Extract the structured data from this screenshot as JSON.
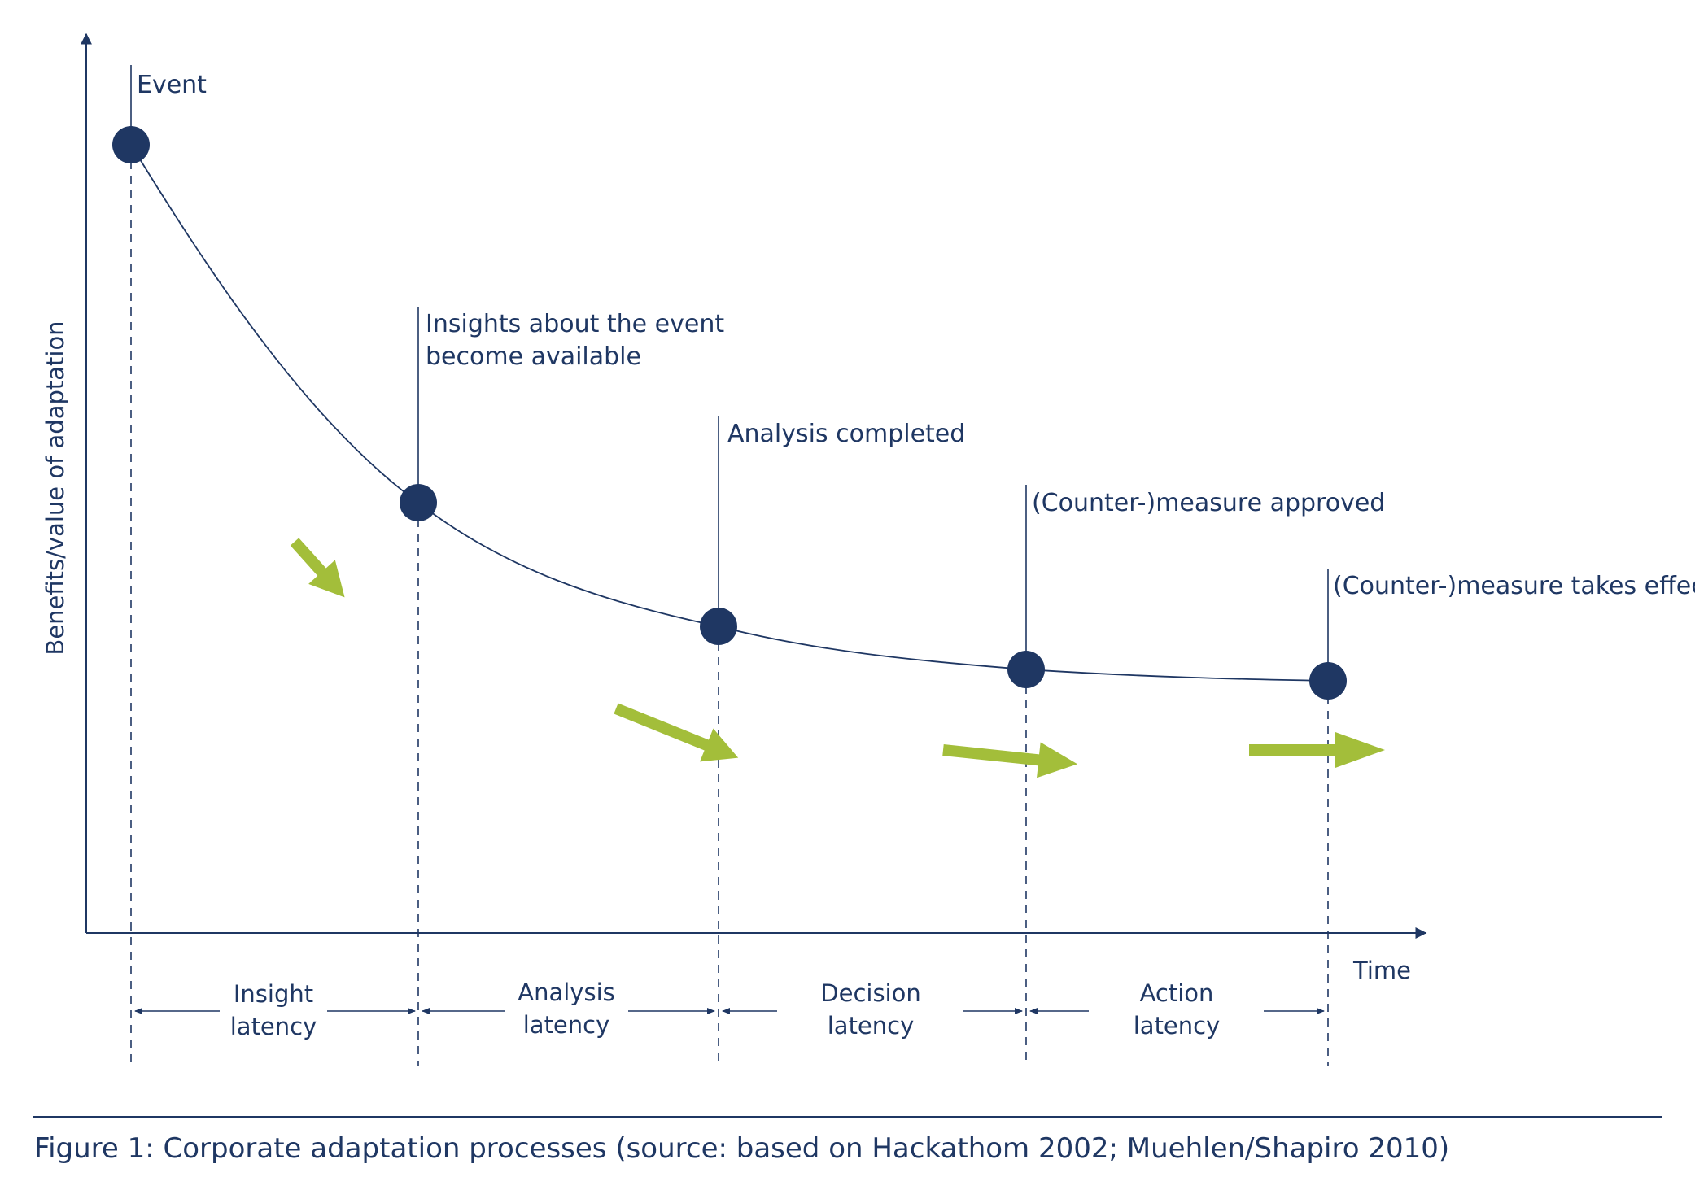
{
  "axes": {
    "y_label": "Benefits/value of adaptation",
    "x_label": "Time"
  },
  "events": [
    {
      "lines": [
        "Event"
      ]
    },
    {
      "lines": [
        "Insights about the event",
        "become available"
      ]
    },
    {
      "lines": [
        "Analysis completed"
      ]
    },
    {
      "lines": [
        "(Counter-)measure approved"
      ]
    },
    {
      "lines": [
        "(Counter-)measure takes effect"
      ]
    }
  ],
  "latencies": [
    {
      "lines": [
        "Insight",
        "latency"
      ]
    },
    {
      "lines": [
        "Analysis",
        "latency"
      ]
    },
    {
      "lines": [
        "Decision",
        "latency"
      ]
    },
    {
      "lines": [
        "Action",
        "latency"
      ]
    }
  ],
  "caption": "Figure 1: Corporate adaptation processes (source: based on Hackathom 2002; Muehlen/Shapiro 2010)",
  "colors": {
    "navy": "#1f3763",
    "green_arrow": "#a3be3a"
  },
  "icons": [
    "green-arrow-icon"
  ]
}
